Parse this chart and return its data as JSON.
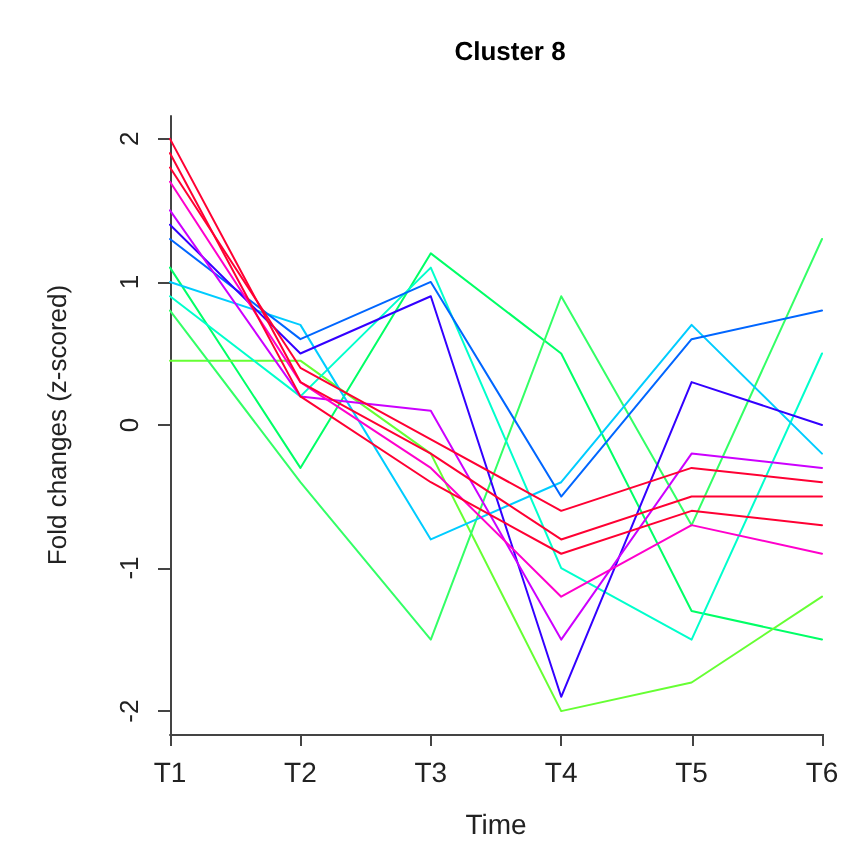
{
  "chart_data": {
    "type": "line",
    "title": "Cluster 8",
    "xlabel": "Time",
    "ylabel": "Fold changes (z-scored)",
    "categories": [
      "T1",
      "T2",
      "T3",
      "T4",
      "T5",
      "T6"
    ],
    "ylim": [
      -2.16,
      2.16
    ],
    "yticks": [
      -2,
      -1,
      0,
      1,
      2
    ],
    "grid": false,
    "marker": "none",
    "line_style": "solid",
    "series": [
      {
        "color": "#00ff66",
        "values": [
          1.1,
          -0.3,
          1.2,
          0.5,
          -1.3,
          -1.5
        ]
      },
      {
        "color": "#66ff33",
        "values": [
          0.45,
          0.45,
          -0.2,
          -2.0,
          -1.8,
          -1.2
        ]
      },
      {
        "color": "#33ff66",
        "values": [
          0.8,
          -0.4,
          -1.5,
          0.9,
          -0.7,
          1.3
        ]
      },
      {
        "color": "#00ffcc",
        "values": [
          0.9,
          0.2,
          1.1,
          -1.0,
          -1.5,
          0.5
        ]
      },
      {
        "color": "#00ccff",
        "values": [
          1.0,
          0.7,
          -0.8,
          -0.4,
          0.7,
          -0.2
        ]
      },
      {
        "color": "#0066ff",
        "values": [
          1.3,
          0.6,
          1.0,
          -0.5,
          0.6,
          0.8
        ]
      },
      {
        "color": "#3300ff",
        "values": [
          1.4,
          0.5,
          0.9,
          -1.9,
          0.3,
          0.0
        ]
      },
      {
        "color": "#cc00ff",
        "values": [
          1.5,
          0.2,
          0.1,
          -1.5,
          -0.2,
          -0.3
        ]
      },
      {
        "color": "#ff00cc",
        "values": [
          1.7,
          0.3,
          -0.3,
          -1.2,
          -0.7,
          -0.9
        ]
      },
      {
        "color": "#ff0033",
        "values": [
          1.8,
          0.4,
          -0.1,
          -0.6,
          -0.3,
          -0.4
        ]
      },
      {
        "color": "#ff0033",
        "values": [
          1.9,
          0.2,
          -0.4,
          -0.9,
          -0.6,
          -0.7
        ]
      },
      {
        "color": "#ff0033",
        "values": [
          2.0,
          0.3,
          -0.2,
          -0.8,
          -0.5,
          -0.5
        ]
      }
    ]
  }
}
